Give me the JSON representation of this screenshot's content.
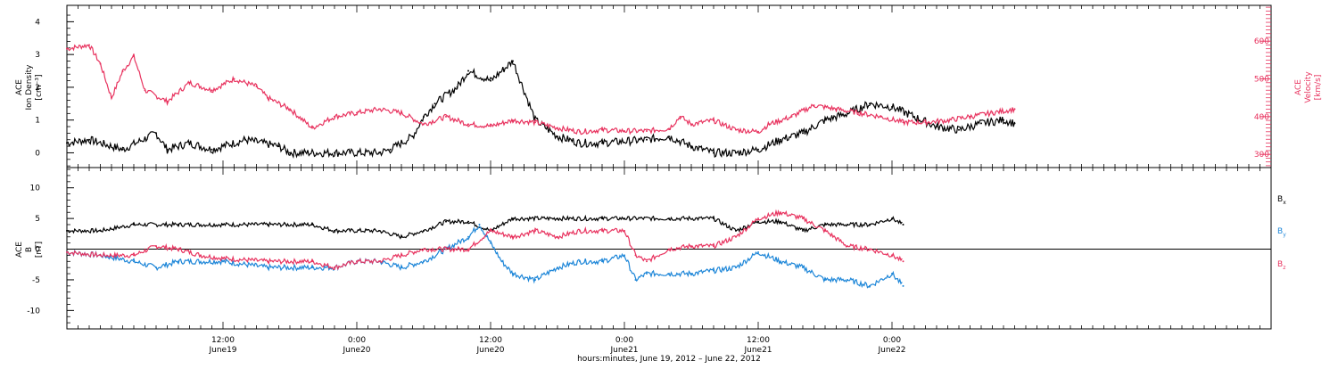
{
  "colors": {
    "black": "#000000",
    "red": "#e8335f",
    "blue": "#1d86d8"
  },
  "chart_data": [
    {
      "type": "scatter",
      "panel": "top",
      "ylabel_left": [
        "ACE",
        "Ion Density",
        "[cm⁻³]"
      ],
      "ylabel_right": [
        "ACE",
        "Velocity",
        "[km/s]"
      ],
      "yleft_range": [
        -0.45,
        4.5
      ],
      "yleft_ticks": [
        "0",
        "1",
        "2",
        "3",
        "4"
      ],
      "yright_range": [
        265,
        695
      ],
      "yright_ticks": [
        "300",
        "400",
        "500",
        "600"
      ],
      "right_axis_ticks_on": "right",
      "series": [
        {
          "color": "#000000",
          "axis": "left",
          "points": [
            [
              0.0,
              0.3
            ],
            [
              2.0,
              0.4
            ],
            [
              5.0,
              0.1
            ],
            [
              8.0,
              0.6
            ],
            [
              9.0,
              0.1
            ],
            [
              11.0,
              0.3
            ],
            [
              13.0,
              0.1
            ],
            [
              16.0,
              0.4
            ],
            [
              19.0,
              0.2
            ],
            [
              20.0,
              0.0
            ],
            [
              24.0,
              0.0
            ],
            [
              28.0,
              0.0
            ],
            [
              29.0,
              0.1
            ],
            [
              31.0,
              0.5
            ],
            [
              32.0,
              1.1
            ],
            [
              33.0,
              1.5
            ],
            [
              35.0,
              2.0
            ],
            [
              36.0,
              2.5
            ],
            [
              38.0,
              2.2
            ],
            [
              40.0,
              2.8
            ],
            [
              42.0,
              1.0
            ],
            [
              44.0,
              0.5
            ],
            [
              46.0,
              0.3
            ],
            [
              48.0,
              0.3
            ],
            [
              52.0,
              0.4
            ],
            [
              54.0,
              0.5
            ],
            [
              56.0,
              0.2
            ],
            [
              58.0,
              0.0
            ],
            [
              60.0,
              0.0
            ],
            [
              62.0,
              0.1
            ],
            [
              64.0,
              0.4
            ],
            [
              66.0,
              0.6
            ],
            [
              68.0,
              1.0
            ],
            [
              70.0,
              1.2
            ],
            [
              72.0,
              1.5
            ],
            [
              74.0,
              1.4
            ],
            [
              76.0,
              1.1
            ],
            [
              78.0,
              0.8
            ],
            [
              80.0,
              0.7
            ],
            [
              82.0,
              0.9
            ],
            [
              84.0,
              1.0
            ],
            [
              85.0,
              0.9
            ]
          ]
        },
        {
          "color": "#e8335f",
          "axis": "right",
          "points": [
            [
              0.0,
              580
            ],
            [
              2.0,
              590
            ],
            [
              3.0,
              540
            ],
            [
              4.0,
              450
            ],
            [
              5.0,
              520
            ],
            [
              6.0,
              560
            ],
            [
              7.0,
              470
            ],
            [
              9.0,
              440
            ],
            [
              11.0,
              490
            ],
            [
              13.0,
              470
            ],
            [
              15.0,
              500
            ],
            [
              17.0,
              480
            ],
            [
              18.0,
              450
            ],
            [
              20.0,
              420
            ],
            [
              22.0,
              370
            ],
            [
              24.0,
              400
            ],
            [
              26.0,
              410
            ],
            [
              28.0,
              420
            ],
            [
              30.0,
              410
            ],
            [
              32.0,
              380
            ],
            [
              34.0,
              400
            ],
            [
              36.0,
              380
            ],
            [
              38.0,
              375
            ],
            [
              40.0,
              390
            ],
            [
              42.0,
              385
            ],
            [
              44.0,
              370
            ],
            [
              46.0,
              360
            ],
            [
              48.0,
              365
            ],
            [
              50.0,
              362
            ],
            [
              52.0,
              362
            ],
            [
              54.0,
              368
            ],
            [
              55.0,
              400
            ],
            [
              56.0,
              380
            ],
            [
              58.0,
              390
            ],
            [
              60.0,
              365
            ],
            [
              62.0,
              360
            ],
            [
              63.0,
              380
            ],
            [
              65.0,
              400
            ],
            [
              67.0,
              430
            ],
            [
              69.0,
              420
            ],
            [
              71.0,
              410
            ],
            [
              73.0,
              400
            ],
            [
              75.0,
              385
            ],
            [
              77.0,
              385
            ],
            [
              79.0,
              390
            ],
            [
              81.0,
              400
            ],
            [
              83.0,
              410
            ],
            [
              85.0,
              420
            ]
          ]
        }
      ]
    },
    {
      "type": "scatter",
      "panel": "bottom",
      "ylabel_left": [
        "ACE",
        "B",
        "[nT]"
      ],
      "ylim": [
        -13,
        13.3
      ],
      "yticks": [
        "-10",
        "-5",
        "0",
        "5",
        "10"
      ],
      "zero_line": true,
      "legend": [
        {
          "label": "B",
          "sub": "x",
          "color": "#000000"
        },
        {
          "label": "B",
          "sub": "y",
          "color": "#1d86d8"
        },
        {
          "label": "B",
          "sub": "z",
          "color": "#e8335f"
        }
      ],
      "xlabel": "hours:minutes, June 19, 2012 – June 22, 2012",
      "xlim_hours": [
        0,
        108
      ],
      "x_ticks": [
        {
          "hour": 14,
          "time": "12:00",
          "date": "June19"
        },
        {
          "hour": 26,
          "time": "0:00",
          "date": "June20"
        },
        {
          "hour": 38,
          "time": "12:00",
          "date": "June20"
        },
        {
          "hour": 50,
          "time": "0:00",
          "date": "June21"
        },
        {
          "hour": 62,
          "time": "12:00",
          "date": "June21"
        },
        {
          "hour": 74,
          "time": "0:00",
          "date": "June22"
        }
      ],
      "series": [
        {
          "name": "Bx",
          "color": "#000000",
          "points": [
            [
              0.0,
              3.0
            ],
            [
              3.0,
              3.0
            ],
            [
              6.0,
              4.0
            ],
            [
              10.0,
              4.0
            ],
            [
              14.0,
              4.0
            ],
            [
              18.0,
              4.0
            ],
            [
              22.0,
              4.0
            ],
            [
              24.0,
              3.0
            ],
            [
              28.0,
              3.0
            ],
            [
              30.0,
              2.0
            ],
            [
              32.0,
              3.0
            ],
            [
              34.0,
              4.5
            ],
            [
              36.0,
              4.5
            ],
            [
              38.0,
              3.0
            ],
            [
              40.0,
              5.0
            ],
            [
              44.0,
              5.0
            ],
            [
              48.0,
              5.0
            ],
            [
              50.0,
              5.0
            ],
            [
              54.0,
              5.0
            ],
            [
              58.0,
              5.0
            ],
            [
              60.0,
              3.0
            ],
            [
              62.0,
              4.5
            ],
            [
              64.0,
              4.5
            ],
            [
              66.0,
              3.0
            ],
            [
              68.0,
              4.0
            ],
            [
              70.0,
              4.0
            ],
            [
              72.0,
              4.0
            ],
            [
              74.0,
              5.0
            ],
            [
              75.0,
              4.0
            ]
          ]
        },
        {
          "name": "By",
          "color": "#1d86d8",
          "points": [
            [
              0.0,
              -0.5
            ],
            [
              3.0,
              -1.0
            ],
            [
              6.0,
              -2.0
            ],
            [
              8.0,
              -3.0
            ],
            [
              10.0,
              -2.0
            ],
            [
              14.0,
              -2.0
            ],
            [
              18.0,
              -3.0
            ],
            [
              22.0,
              -3.0
            ],
            [
              24.0,
              -3.0
            ],
            [
              26.0,
              -2.0
            ],
            [
              28.0,
              -2.0
            ],
            [
              30.0,
              -3.0
            ],
            [
              32.0,
              -2.0
            ],
            [
              34.0,
              0.0
            ],
            [
              36.0,
              2.0
            ],
            [
              37.0,
              4.0
            ],
            [
              38.0,
              1.0
            ],
            [
              39.0,
              -2.0
            ],
            [
              40.0,
              -4.0
            ],
            [
              42.0,
              -5.0
            ],
            [
              44.0,
              -3.0
            ],
            [
              46.0,
              -2.0
            ],
            [
              48.0,
              -2.0
            ],
            [
              50.0,
              -1.0
            ],
            [
              51.0,
              -5.0
            ],
            [
              52.0,
              -4.0
            ],
            [
              54.0,
              -4.0
            ],
            [
              56.0,
              -4.0
            ],
            [
              58.0,
              -3.5
            ],
            [
              60.0,
              -3.0
            ],
            [
              62.0,
              -0.5
            ],
            [
              64.0,
              -2.0
            ],
            [
              66.0,
              -3.0
            ],
            [
              68.0,
              -5.0
            ],
            [
              70.0,
              -5.0
            ],
            [
              72.0,
              -6.0
            ],
            [
              74.0,
              -4.0
            ],
            [
              75.0,
              -6.0
            ]
          ]
        },
        {
          "name": "Bz",
          "color": "#e8335f",
          "points": [
            [
              0.0,
              -0.5
            ],
            [
              3.0,
              -1.0
            ],
            [
              6.0,
              -1.0
            ],
            [
              8.0,
              0.5
            ],
            [
              10.0,
              0.0
            ],
            [
              12.0,
              -1.0
            ],
            [
              14.0,
              -1.5
            ],
            [
              18.0,
              -2.0
            ],
            [
              22.0,
              -2.0
            ],
            [
              24.0,
              -3.0
            ],
            [
              26.0,
              -2.0
            ],
            [
              28.0,
              -2.0
            ],
            [
              30.0,
              -1.0
            ],
            [
              32.0,
              0.0
            ],
            [
              34.0,
              0.0
            ],
            [
              36.0,
              0.0
            ],
            [
              38.0,
              3.0
            ],
            [
              40.0,
              2.0
            ],
            [
              42.0,
              3.0
            ],
            [
              44.0,
              2.0
            ],
            [
              46.0,
              3.0
            ],
            [
              48.0,
              3.0
            ],
            [
              50.0,
              3.0
            ],
            [
              51.0,
              -1.0
            ],
            [
              52.0,
              -2.0
            ],
            [
              54.0,
              0.0
            ],
            [
              56.0,
              0.5
            ],
            [
              58.0,
              0.5
            ],
            [
              60.0,
              2.0
            ],
            [
              62.0,
              5.0
            ],
            [
              64.0,
              6.0
            ],
            [
              66.0,
              5.0
            ],
            [
              68.0,
              3.0
            ],
            [
              70.0,
              0.5
            ],
            [
              72.0,
              0.0
            ],
            [
              74.0,
              -1.0
            ],
            [
              75.0,
              -2.0
            ]
          ]
        }
      ]
    }
  ]
}
